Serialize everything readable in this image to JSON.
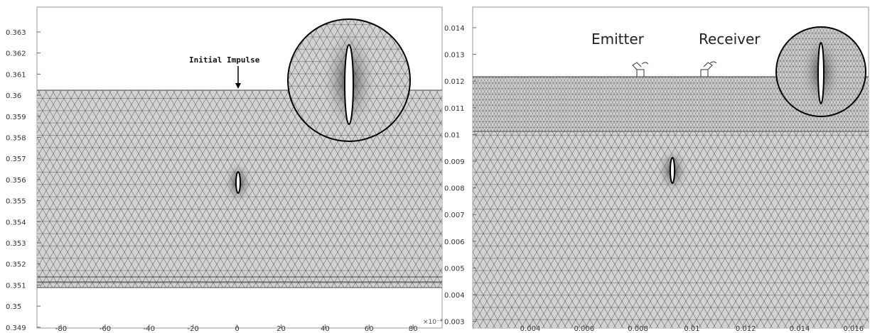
{
  "left_panel": {
    "y_ticks": [
      "0.363",
      "0.362",
      "0.361",
      "0.36",
      "0.359",
      "0.358",
      "0.357",
      "0.356",
      "0.355",
      "0.354",
      "0.353",
      "0.352",
      "0.351",
      "0.35",
      "0.349"
    ],
    "x_ticks": [
      "-80",
      "-60",
      "-40",
      "-20",
      "0",
      "20",
      "40",
      "60",
      "80"
    ],
    "x_exponent": "×10⁻⁴",
    "annotation": "Initial Impulse"
  },
  "right_panel": {
    "y_ticks": [
      "0.014",
      "0.013",
      "0.012",
      "0.011",
      "0.01",
      "0.009",
      "0.008",
      "0.007",
      "0.006",
      "0.005",
      "0.004",
      "0.003"
    ],
    "x_ticks": [
      "0.004",
      "0.006",
      "0.008",
      "0.01",
      "0.012",
      "0.014",
      "0.016"
    ],
    "emitter_label": "Emitter",
    "receiver_label": "Receiver"
  },
  "colors": {
    "mesh_fill": "#d3d3d3",
    "mesh_line": "#555555",
    "background": "#ffffff"
  }
}
